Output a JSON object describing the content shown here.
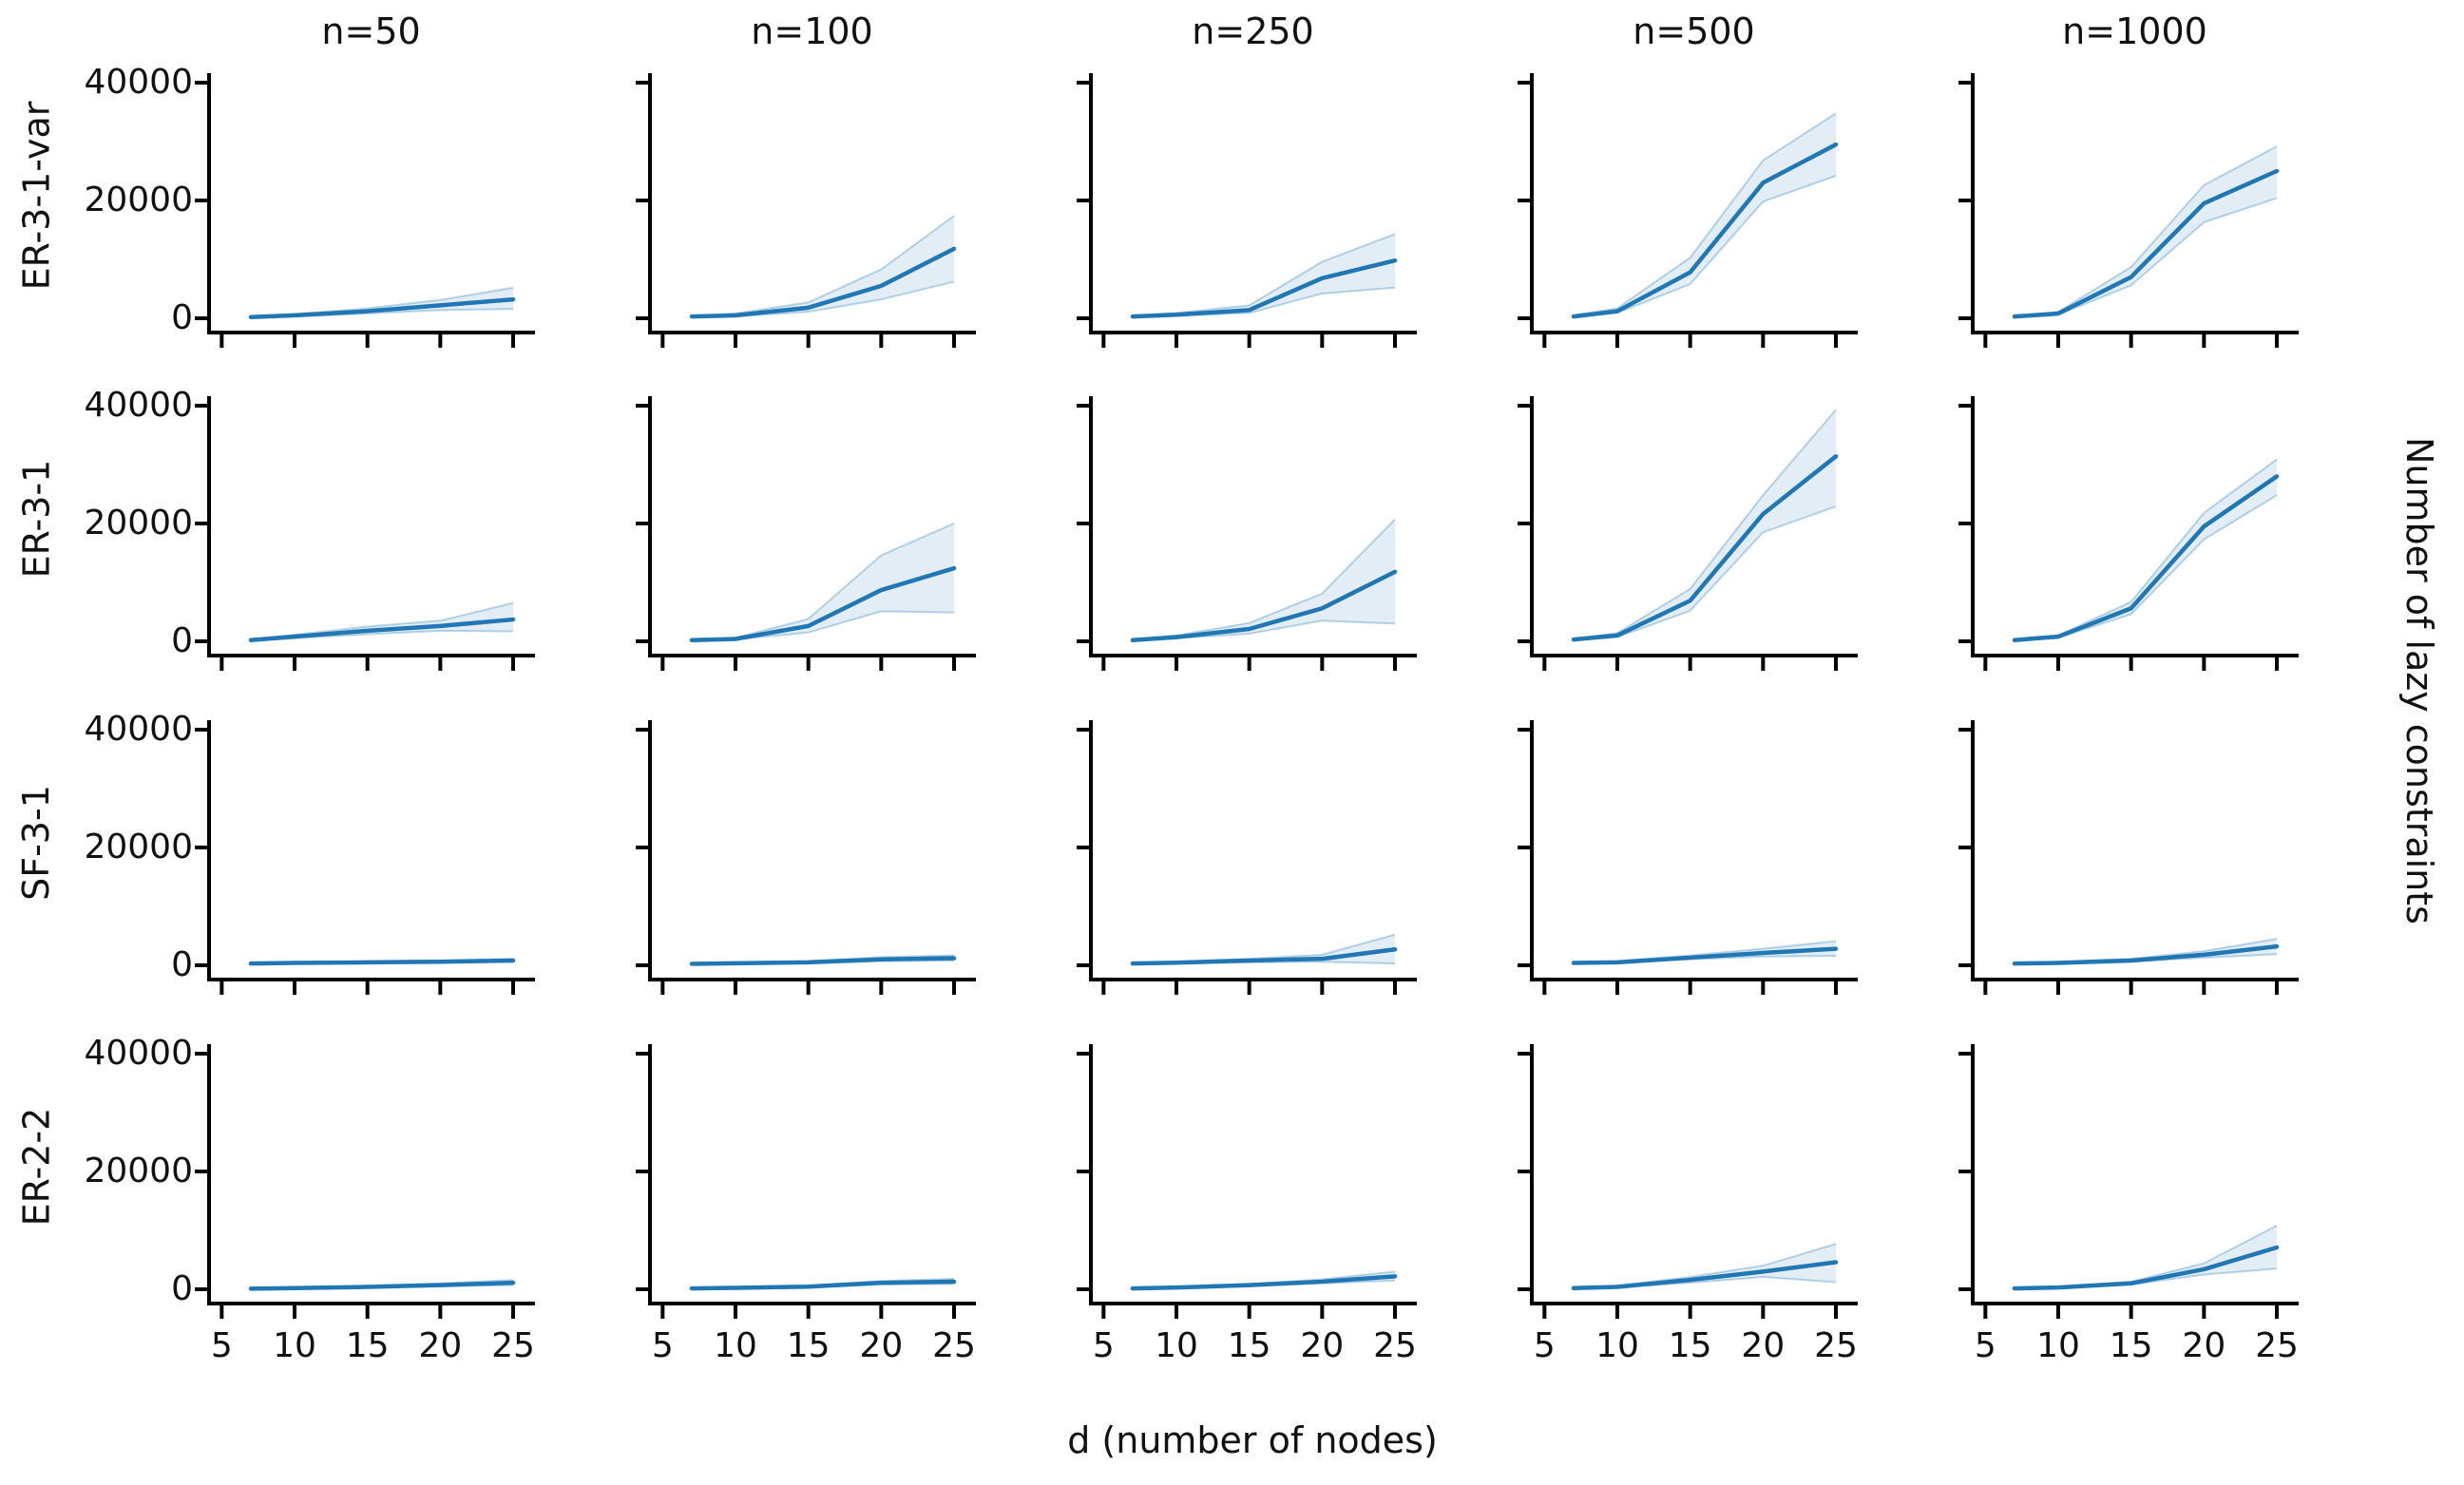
{
  "figure": {
    "xlabel": "d (number of nodes)",
    "ylabel_right": "Number of lazy constraints",
    "col_titles": [
      "n=50",
      "n=100",
      "n=250",
      "n=500",
      "n=1000"
    ],
    "row_labels": [
      "ER-3-1-var",
      "ER-3-1",
      "SF-3-1",
      "ER-2-2"
    ],
    "x_ticks": [
      5,
      10,
      15,
      20,
      25
    ],
    "y_ticks": [
      0,
      20000,
      40000
    ],
    "line_color": "#2077b4",
    "band_fill_color": "rgba(31,119,180,0.13)",
    "band_edge_color": "rgba(31,119,180,0.30)",
    "spine_color": "#000000"
  },
  "chart_data": {
    "type": "line",
    "title": "",
    "xlabel": "d (number of nodes)",
    "ylabel": "Number of lazy constraints",
    "x": [
      7,
      10,
      15,
      20,
      25
    ],
    "xlim": [
      4,
      26.5
    ],
    "ylim": [
      -2500,
      42500
    ],
    "x_ticks": [
      5,
      10,
      15,
      20,
      25
    ],
    "y_ticks": [
      0,
      20000,
      40000
    ],
    "grid": false,
    "legend": "none",
    "facet_rows": [
      {
        "label": "ER-3-1-var",
        "panels": [
          {
            "col": "n=50",
            "mean": [
              200,
              500,
              1200,
              2200,
              3200
            ],
            "lo": [
              100,
              300,
              800,
              1400,
              1600
            ],
            "hi": [
              300,
              700,
              1700,
              3100,
              5200
            ]
          },
          {
            "col": "n=100",
            "mean": [
              300,
              500,
              1800,
              5500,
              11800
            ],
            "lo": [
              200,
              300,
              1100,
              3200,
              6200
            ],
            "hi": [
              400,
              800,
              2700,
              8300,
              17400
            ]
          },
          {
            "col": "n=250",
            "mean": [
              300,
              600,
              1400,
              6800,
              9800
            ],
            "lo": [
              200,
              400,
              900,
              4200,
              5200
            ],
            "hi": [
              400,
              900,
              2200,
              9600,
              14300
            ]
          },
          {
            "col": "n=500",
            "mean": [
              300,
              1200,
              7800,
              23000,
              29500
            ],
            "lo": [
              200,
              900,
              5800,
              19800,
              24200
            ],
            "hi": [
              500,
              1700,
              10300,
              26800,
              34800
            ]
          },
          {
            "col": "n=1000",
            "mean": [
              300,
              800,
              7000,
              19500,
              25000
            ],
            "lo": [
              200,
              600,
              5600,
              16300,
              20400
            ],
            "hi": [
              400,
              1100,
              8700,
              22600,
              29200
            ]
          }
        ]
      },
      {
        "label": "ER-3-1",
        "panels": [
          {
            "col": "n=50",
            "mean": [
              200,
              800,
              1800,
              2600,
              3700
            ],
            "lo": [
              100,
              500,
              1200,
              1800,
              1700
            ],
            "hi": [
              300,
              1100,
              2500,
              3500,
              6500
            ]
          },
          {
            "col": "n=100",
            "mean": [
              200,
              400,
              2600,
              8700,
              12400
            ],
            "lo": [
              100,
              300,
              1500,
              5100,
              4900
            ],
            "hi": [
              300,
              600,
              3800,
              14600,
              20000
            ]
          },
          {
            "col": "n=250",
            "mean": [
              200,
              700,
              2100,
              5600,
              11800
            ],
            "lo": [
              100,
              500,
              1300,
              3500,
              3000
            ],
            "hi": [
              300,
              1000,
              3100,
              8100,
              20700
            ]
          },
          {
            "col": "n=500",
            "mean": [
              300,
              1000,
              6900,
              21600,
              31400
            ],
            "lo": [
              200,
              700,
              5200,
              18500,
              22900
            ],
            "hi": [
              400,
              1400,
              8900,
              24800,
              39300
            ]
          },
          {
            "col": "n=1000",
            "mean": [
              200,
              800,
              5600,
              19500,
              28000
            ],
            "lo": [
              100,
              600,
              4600,
              17300,
              24800
            ],
            "hi": [
              300,
              1000,
              6700,
              21800,
              30900
            ]
          }
        ]
      },
      {
        "label": "SF-3-1",
        "panels": [
          {
            "col": "n=50",
            "mean": [
              300,
              400,
              500,
              600,
              800
            ],
            "lo": [
              200,
              300,
              400,
              500,
              600
            ],
            "hi": [
              400,
              500,
              700,
              800,
              1100
            ]
          },
          {
            "col": "n=100",
            "mean": [
              250,
              350,
              500,
              1000,
              1200
            ],
            "lo": [
              200,
              250,
              350,
              700,
              800
            ],
            "hi": [
              350,
              500,
              700,
              1400,
              1700
            ]
          },
          {
            "col": "n=250",
            "mean": [
              300,
              450,
              800,
              1100,
              2700
            ],
            "lo": [
              200,
              300,
              500,
              600,
              300
            ],
            "hi": [
              400,
              600,
              1100,
              1800,
              5200
            ]
          },
          {
            "col": "n=500",
            "mean": [
              400,
              500,
              1300,
              2100,
              2800
            ],
            "lo": [
              300,
              400,
              1000,
              1500,
              1600
            ],
            "hi": [
              500,
              700,
              1700,
              2800,
              4100
            ]
          },
          {
            "col": "n=1000",
            "mean": [
              300,
              400,
              800,
              1800,
              3200
            ],
            "lo": [
              200,
              300,
              600,
              1300,
              1900
            ],
            "hi": [
              400,
              600,
              1100,
              2400,
              4500
            ]
          }
        ]
      },
      {
        "label": "ER-2-2",
        "panels": [
          {
            "col": "n=50",
            "mean": [
              100,
              200,
              400,
              700,
              1100
            ],
            "lo": [
              50,
              150,
              300,
              500,
              700
            ],
            "hi": [
              200,
              300,
              600,
              1000,
              1600
            ]
          },
          {
            "col": "n=100",
            "mean": [
              150,
              250,
              450,
              1100,
              1300
            ],
            "lo": [
              100,
              200,
              350,
              800,
              900
            ],
            "hi": [
              250,
              400,
              650,
              1400,
              1800
            ]
          },
          {
            "col": "n=250",
            "mean": [
              150,
              300,
              700,
              1300,
              2200
            ],
            "lo": [
              100,
              250,
              500,
              1000,
              1500
            ],
            "hi": [
              250,
              450,
              900,
              1700,
              3000
            ]
          },
          {
            "col": "n=500",
            "mean": [
              200,
              400,
              1600,
              3000,
              4600
            ],
            "lo": [
              150,
              300,
              1100,
              2100,
              1200
            ],
            "hi": [
              300,
              600,
              2100,
              4000,
              7700
            ]
          },
          {
            "col": "n=1000",
            "mean": [
              150,
              300,
              1000,
              3400,
              7100
            ],
            "lo": [
              100,
              250,
              800,
              2500,
              3500
            ],
            "hi": [
              250,
              450,
              1300,
              4400,
              10800
            ]
          }
        ]
      }
    ]
  }
}
